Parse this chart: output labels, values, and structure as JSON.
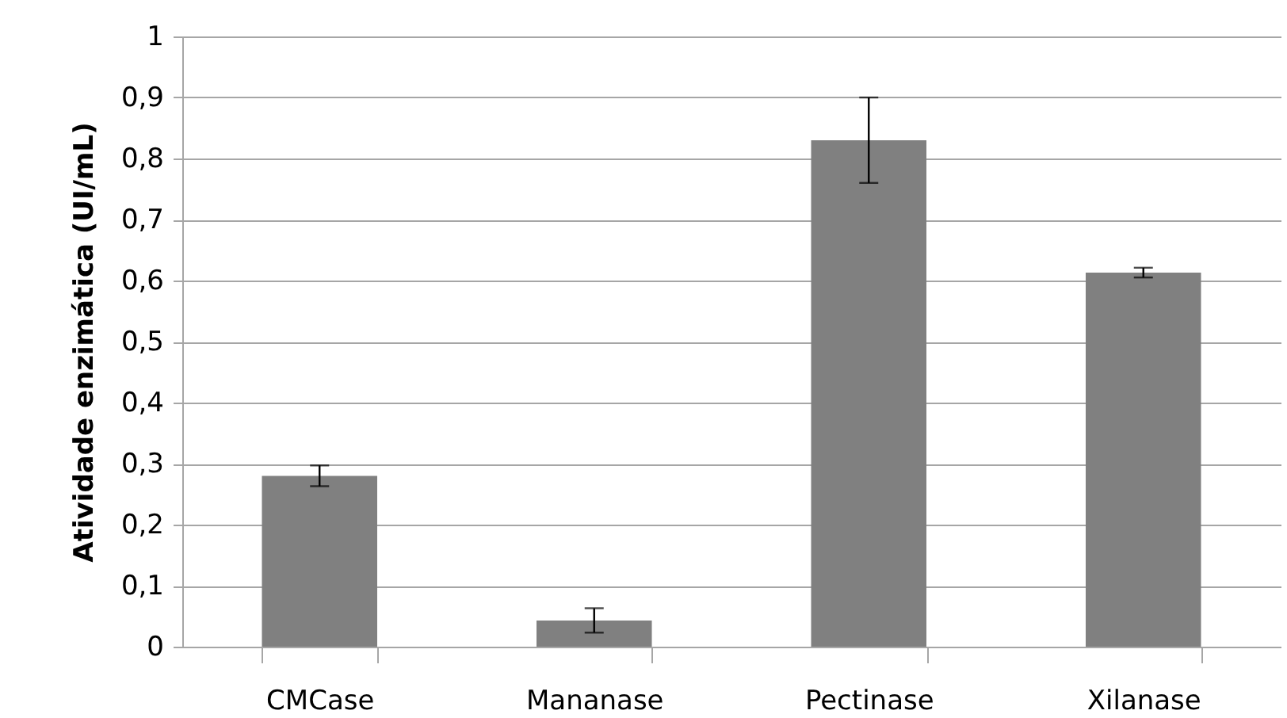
{
  "chart_data": {
    "type": "bar",
    "ylabel": "Atividade enzimática (UI/mL)",
    "categories": [
      "CMCase",
      "Mananase",
      "Pectinase",
      "Xilanase"
    ],
    "color": "#808080",
    "values": [
      0.28,
      0.043,
      0.83,
      0.613
    ],
    "errors": [
      0.017,
      0.02,
      0.07,
      0.008
    ],
    "ylim": [
      0,
      1
    ],
    "yticks": [
      0,
      {
        "value": 0.1,
        "label": "0,1"
      },
      {
        "value": 0.2,
        "label": "0,2"
      },
      {
        "value": 0.3,
        "label": "0,3"
      },
      {
        "value": 0.4,
        "label": "0,4"
      },
      {
        "value": 0.5,
        "label": "0,5"
      },
      {
        "value": 0.6,
        "label": "0,6"
      },
      {
        "value": 0.7,
        "label": "0,7"
      },
      {
        "value": 0.8,
        "label": "0,8"
      },
      {
        "value": 0.9,
        "label": "0,9"
      },
      1
    ],
    "grid": "y"
  }
}
